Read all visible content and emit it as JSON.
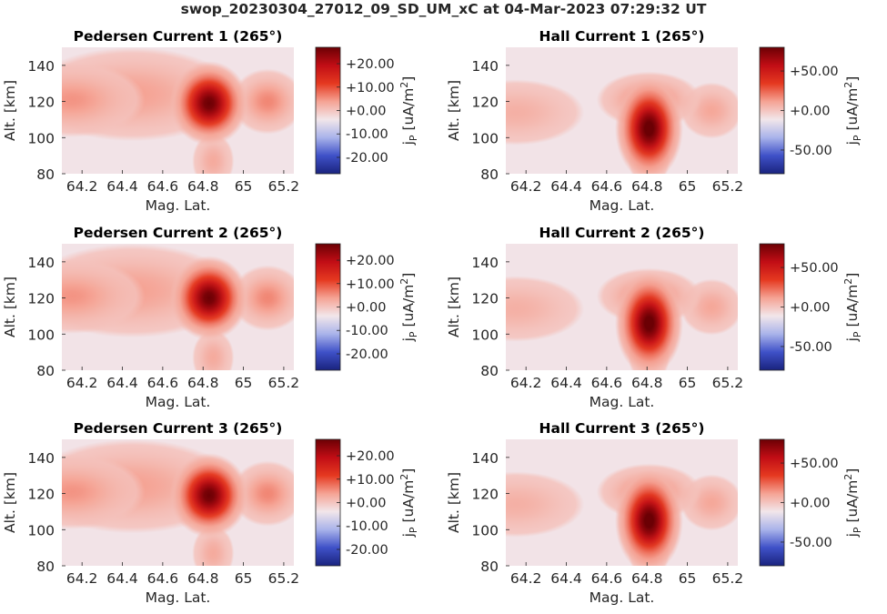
{
  "suptitle": "swop_20230304_27012_09_SD_UM_xC at 04-Mar-2023 07:29:32 UT",
  "colors": {
    "colormap": [
      "#1a237e",
      "#3f51c8",
      "#a9b3ea",
      "#f2e6ea",
      "#f5a394",
      "#e53920",
      "#c10d15",
      "#6b0004"
    ],
    "background": "#f2e3e7"
  },
  "chart_data": [
    {
      "type": "heatmap",
      "title": "Pedersen Current 1 (265°)",
      "xlabel": "Mag. Lat.",
      "ylabel": "Alt. [km]",
      "colorbar_label": "j_P [uA/m^2]",
      "xlim": [
        64.1,
        65.25
      ],
      "ylim": [
        80,
        150
      ],
      "xticks": [
        64.2,
        64.4,
        64.6,
        64.8,
        65,
        65.2
      ],
      "xtick_labels": [
        "64.2",
        "64.4",
        "64.6",
        "64.8",
        "65",
        "65.2"
      ],
      "yticks": [
        80,
        100,
        120,
        140
      ],
      "ytick_labels": [
        "80",
        "100",
        "120",
        "140"
      ],
      "clim": [
        -27,
        27
      ],
      "cbar_ticks": [
        20,
        10,
        0,
        -10,
        -20
      ],
      "cbar_tick_labels": [
        "+20.00",
        "+10.00",
        "+0.00",
        "-10.00",
        "-20.00"
      ],
      "features": [
        {
          "lat": 64.83,
          "alt": 119,
          "peak": 27,
          "sx": 0.075,
          "sy": 9
        },
        {
          "lat": 64.15,
          "alt": 121,
          "peak": 5,
          "sx": 0.14,
          "sy": 8
        },
        {
          "lat": 64.45,
          "alt": 124,
          "peak": 4,
          "sx": 0.2,
          "sy": 10
        },
        {
          "lat": 65.12,
          "alt": 120,
          "peak": 6,
          "sx": 0.07,
          "sy": 7
        },
        {
          "lat": 64.85,
          "alt": 87,
          "peak": 3,
          "sx": 0.04,
          "sy": 6
        }
      ]
    },
    {
      "type": "heatmap",
      "title": "Hall Current 1 (265°)",
      "xlabel": "Mag. Lat.",
      "ylabel": "Alt. [km]",
      "colorbar_label": "j_P [uA/m^2]",
      "xlim": [
        64.1,
        65.25
      ],
      "ylim": [
        80,
        150
      ],
      "xticks": [
        64.2,
        64.4,
        64.6,
        64.8,
        65,
        65.2
      ],
      "xtick_labels": [
        "64.2",
        "64.4",
        "64.6",
        "64.8",
        "65",
        "65.2"
      ],
      "yticks": [
        80,
        100,
        120,
        140
      ],
      "ytick_labels": [
        "80",
        "100",
        "120",
        "140"
      ],
      "clim": [
        -80,
        80
      ],
      "cbar_ticks": [
        50,
        0,
        -50
      ],
      "cbar_tick_labels": [
        "+50.00",
        "+0.00",
        "-50.00"
      ],
      "features": [
        {
          "lat": 64.81,
          "alt": 105,
          "peak": 85,
          "sx": 0.065,
          "sy": 11
        },
        {
          "lat": 64.81,
          "alt": 121,
          "peak": 20,
          "sx": 0.1,
          "sy": 6
        },
        {
          "lat": 64.15,
          "alt": 114,
          "peak": 7,
          "sx": 0.13,
          "sy": 7
        },
        {
          "lat": 65.12,
          "alt": 115,
          "peak": 10,
          "sx": 0.06,
          "sy": 6
        },
        {
          "lat": 64.81,
          "alt": 88,
          "peak": 12,
          "sx": 0.04,
          "sy": 6
        }
      ]
    },
    {
      "type": "heatmap",
      "title": "Pedersen Current 2 (265°)",
      "xlabel": "Mag. Lat.",
      "ylabel": "Alt. [km]",
      "colorbar_label": "j_P [uA/m^2]",
      "xlim": [
        64.1,
        65.25
      ],
      "ylim": [
        80,
        150
      ],
      "xticks": [
        64.2,
        64.4,
        64.6,
        64.8,
        65,
        65.2
      ],
      "xtick_labels": [
        "64.2",
        "64.4",
        "64.6",
        "64.8",
        "65",
        "65.2"
      ],
      "yticks": [
        80,
        100,
        120,
        140
      ],
      "ytick_labels": [
        "80",
        "100",
        "120",
        "140"
      ],
      "clim": [
        -27,
        27
      ],
      "cbar_ticks": [
        20,
        10,
        0,
        -10,
        -20
      ],
      "cbar_tick_labels": [
        "+20.00",
        "+10.00",
        "+0.00",
        "-10.00",
        "-20.00"
      ],
      "features": [
        {
          "lat": 64.83,
          "alt": 120,
          "peak": 27,
          "sx": 0.075,
          "sy": 9
        },
        {
          "lat": 64.15,
          "alt": 121,
          "peak": 5,
          "sx": 0.14,
          "sy": 8
        },
        {
          "lat": 64.45,
          "alt": 124,
          "peak": 4,
          "sx": 0.2,
          "sy": 10
        },
        {
          "lat": 65.12,
          "alt": 120,
          "peak": 6,
          "sx": 0.07,
          "sy": 7
        },
        {
          "lat": 64.85,
          "alt": 87,
          "peak": 3,
          "sx": 0.04,
          "sy": 6
        }
      ]
    },
    {
      "type": "heatmap",
      "title": "Hall Current 2 (265°)",
      "xlabel": "Mag. Lat.",
      "ylabel": "Alt. [km]",
      "colorbar_label": "j_P [uA/m^2]",
      "xlim": [
        64.1,
        65.25
      ],
      "ylim": [
        80,
        150
      ],
      "xticks": [
        64.2,
        64.4,
        64.6,
        64.8,
        65,
        65.2
      ],
      "xtick_labels": [
        "64.2",
        "64.4",
        "64.6",
        "64.8",
        "65",
        "65.2"
      ],
      "yticks": [
        80,
        100,
        120,
        140
      ],
      "ytick_labels": [
        "80",
        "100",
        "120",
        "140"
      ],
      "clim": [
        -80,
        80
      ],
      "cbar_ticks": [
        50,
        0,
        -50
      ],
      "cbar_tick_labels": [
        "+50.00",
        "+0.00",
        "-50.00"
      ],
      "features": [
        {
          "lat": 64.81,
          "alt": 106,
          "peak": 85,
          "sx": 0.065,
          "sy": 11
        },
        {
          "lat": 64.81,
          "alt": 121,
          "peak": 20,
          "sx": 0.1,
          "sy": 6
        },
        {
          "lat": 64.15,
          "alt": 114,
          "peak": 7,
          "sx": 0.13,
          "sy": 7
        },
        {
          "lat": 65.12,
          "alt": 115,
          "peak": 10,
          "sx": 0.06,
          "sy": 6
        },
        {
          "lat": 64.81,
          "alt": 88,
          "peak": 12,
          "sx": 0.04,
          "sy": 6
        }
      ]
    },
    {
      "type": "heatmap",
      "title": "Pedersen Current 3 (265°)",
      "xlabel": "Mag. Lat.",
      "ylabel": "Alt. [km]",
      "colorbar_label": "j_P [uA/m^2]",
      "xlim": [
        64.1,
        65.25
      ],
      "ylim": [
        80,
        150
      ],
      "xticks": [
        64.2,
        64.4,
        64.6,
        64.8,
        65,
        65.2
      ],
      "xtick_labels": [
        "64.2",
        "64.4",
        "64.6",
        "64.8",
        "65",
        "65.2"
      ],
      "yticks": [
        80,
        100,
        120,
        140
      ],
      "ytick_labels": [
        "80",
        "100",
        "120",
        "140"
      ],
      "clim": [
        -27,
        27
      ],
      "cbar_ticks": [
        20,
        10,
        0,
        -10,
        -20
      ],
      "cbar_tick_labels": [
        "+20.00",
        "+10.00",
        "+0.00",
        "-10.00",
        "-20.00"
      ],
      "features": [
        {
          "lat": 64.83,
          "alt": 119,
          "peak": 27,
          "sx": 0.075,
          "sy": 9
        },
        {
          "lat": 64.15,
          "alt": 121,
          "peak": 5,
          "sx": 0.14,
          "sy": 8
        },
        {
          "lat": 64.45,
          "alt": 124,
          "peak": 4,
          "sx": 0.2,
          "sy": 10
        },
        {
          "lat": 65.12,
          "alt": 120,
          "peak": 6,
          "sx": 0.07,
          "sy": 7
        },
        {
          "lat": 64.85,
          "alt": 87,
          "peak": 3,
          "sx": 0.04,
          "sy": 6
        }
      ]
    },
    {
      "type": "heatmap",
      "title": "Hall Current 3 (265°)",
      "xlabel": "Mag. Lat.",
      "ylabel": "Alt. [km]",
      "colorbar_label": "j_P [uA/m^2]",
      "xlim": [
        64.1,
        65.25
      ],
      "ylim": [
        80,
        150
      ],
      "xticks": [
        64.2,
        64.4,
        64.6,
        64.8,
        65,
        65.2
      ],
      "xtick_labels": [
        "64.2",
        "64.4",
        "64.6",
        "64.8",
        "65",
        "65.2"
      ],
      "yticks": [
        80,
        100,
        120,
        140
      ],
      "ytick_labels": [
        "80",
        "100",
        "120",
        "140"
      ],
      "clim": [
        -80,
        80
      ],
      "cbar_ticks": [
        50,
        0,
        -50
      ],
      "cbar_tick_labels": [
        "+50.00",
        "+0.00",
        "-50.00"
      ],
      "features": [
        {
          "lat": 64.81,
          "alt": 105,
          "peak": 85,
          "sx": 0.065,
          "sy": 11
        },
        {
          "lat": 64.81,
          "alt": 121,
          "peak": 20,
          "sx": 0.1,
          "sy": 6
        },
        {
          "lat": 64.15,
          "alt": 114,
          "peak": 7,
          "sx": 0.13,
          "sy": 7
        },
        {
          "lat": 65.12,
          "alt": 115,
          "peak": 10,
          "sx": 0.06,
          "sy": 6
        },
        {
          "lat": 64.81,
          "alt": 88,
          "peak": 12,
          "sx": 0.04,
          "sy": 6
        }
      ]
    }
  ]
}
